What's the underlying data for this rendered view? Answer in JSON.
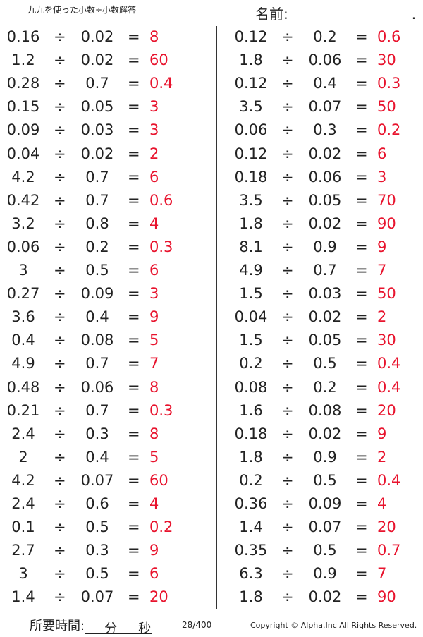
{
  "header": {
    "title": "九九を使った小数÷小数解答",
    "name_label": "名前:",
    "name_end": "."
  },
  "operators": {
    "divide": "÷",
    "equals": "="
  },
  "colors": {
    "answer": "#e8132d",
    "text": "#222222"
  },
  "left_problems": [
    [
      "0.16",
      "0.02",
      "8"
    ],
    [
      "1.2",
      "0.02",
      "60"
    ],
    [
      "0.28",
      "0.7",
      "0.4"
    ],
    [
      "0.15",
      "0.05",
      "3"
    ],
    [
      "0.09",
      "0.03",
      "3"
    ],
    [
      "0.04",
      "0.02",
      "2"
    ],
    [
      "4.2",
      "0.7",
      "6"
    ],
    [
      "0.42",
      "0.7",
      "0.6"
    ],
    [
      "3.2",
      "0.8",
      "4"
    ],
    [
      "0.06",
      "0.2",
      "0.3"
    ],
    [
      "3",
      "0.5",
      "6"
    ],
    [
      "0.27",
      "0.09",
      "3"
    ],
    [
      "3.6",
      "0.4",
      "9"
    ],
    [
      "0.4",
      "0.08",
      "5"
    ],
    [
      "4.9",
      "0.7",
      "7"
    ],
    [
      "0.48",
      "0.06",
      "8"
    ],
    [
      "0.21",
      "0.7",
      "0.3"
    ],
    [
      "2.4",
      "0.3",
      "8"
    ],
    [
      "2",
      "0.4",
      "5"
    ],
    [
      "4.2",
      "0.07",
      "60"
    ],
    [
      "2.4",
      "0.6",
      "4"
    ],
    [
      "0.1",
      "0.5",
      "0.2"
    ],
    [
      "2.7",
      "0.3",
      "9"
    ],
    [
      "3",
      "0.5",
      "6"
    ],
    [
      "1.4",
      "0.07",
      "20"
    ]
  ],
  "right_problems": [
    [
      "0.12",
      "0.2",
      "0.6"
    ],
    [
      "1.8",
      "0.06",
      "30"
    ],
    [
      "0.12",
      "0.4",
      "0.3"
    ],
    [
      "3.5",
      "0.07",
      "50"
    ],
    [
      "0.06",
      "0.3",
      "0.2"
    ],
    [
      "0.12",
      "0.02",
      "6"
    ],
    [
      "0.18",
      "0.06",
      "3"
    ],
    [
      "3.5",
      "0.05",
      "70"
    ],
    [
      "1.8",
      "0.02",
      "90"
    ],
    [
      "8.1",
      "0.9",
      "9"
    ],
    [
      "4.9",
      "0.7",
      "7"
    ],
    [
      "1.5",
      "0.03",
      "50"
    ],
    [
      "0.04",
      "0.02",
      "2"
    ],
    [
      "1.5",
      "0.05",
      "30"
    ],
    [
      "0.2",
      "0.5",
      "0.4"
    ],
    [
      "0.08",
      "0.2",
      "0.4"
    ],
    [
      "1.6",
      "0.08",
      "20"
    ],
    [
      "0.18",
      "0.02",
      "9"
    ],
    [
      "1.8",
      "0.9",
      "2"
    ],
    [
      "0.2",
      "0.5",
      "0.4"
    ],
    [
      "0.36",
      "0.09",
      "4"
    ],
    [
      "1.4",
      "0.07",
      "20"
    ],
    [
      "0.35",
      "0.5",
      "0.7"
    ],
    [
      "6.3",
      "0.9",
      "7"
    ],
    [
      "1.8",
      "0.02",
      "90"
    ]
  ],
  "footer": {
    "time_label": "所要時間:",
    "minutes": "分",
    "seconds": "秒",
    "page": "28/400",
    "copyright": "Copyright © Alpha.Inc All Rights Reserved."
  }
}
